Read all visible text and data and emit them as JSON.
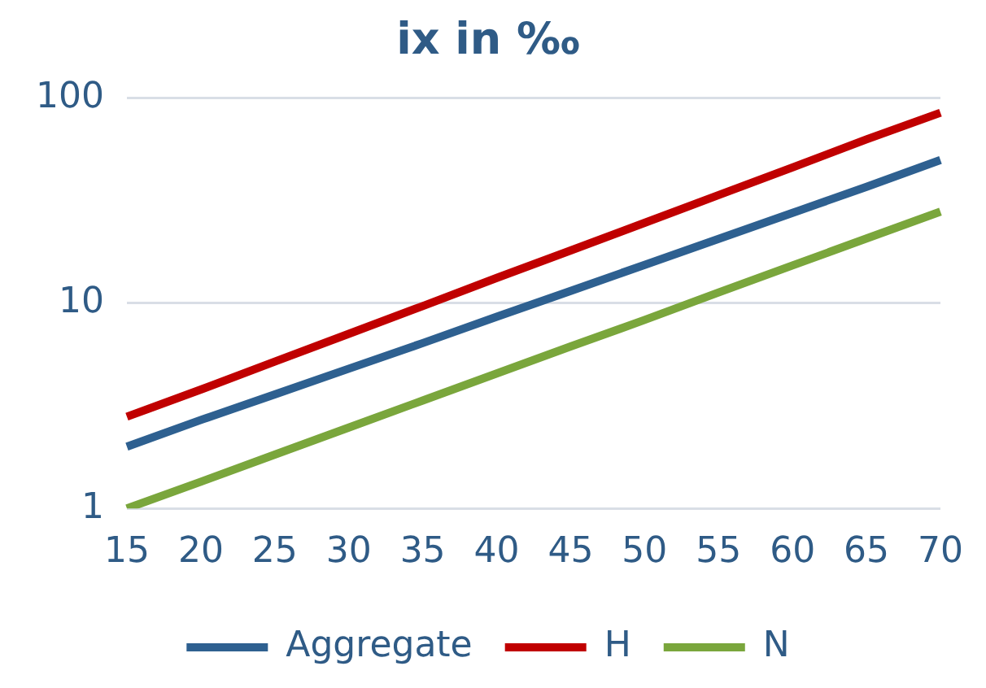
{
  "chart_data": {
    "type": "line",
    "title": "ix in ‰",
    "categories": [
      "15",
      "20",
      "25",
      "30",
      "35",
      "40",
      "45",
      "50",
      "55",
      "60",
      "65",
      "70"
    ],
    "series": [
      {
        "name": "Aggregate",
        "color": "#2e6090",
        "values": [
          2,
          2.7,
          3.6,
          4.8,
          6.4,
          8.6,
          11.5,
          15.4,
          20.6,
          27.6,
          37,
          50
        ]
      },
      {
        "name": "H",
        "color": "#c00000",
        "values": [
          2.8,
          3.8,
          5.2,
          7.1,
          9.7,
          13.3,
          18.1,
          24.7,
          33.7,
          46,
          63,
          85
        ]
      },
      {
        "name": "N",
        "color": "#7aa63c",
        "values": [
          1,
          1.35,
          1.83,
          2.48,
          3.36,
          4.55,
          6.16,
          8.3,
          11.3,
          15.3,
          20.7,
          28
        ]
      }
    ],
    "log": "y",
    "ylim": [
      1,
      100
    ],
    "yticks": [
      1,
      10,
      100
    ],
    "grid": "y",
    "legend": "bottom",
    "marker": "none",
    "line_style": "solid"
  }
}
